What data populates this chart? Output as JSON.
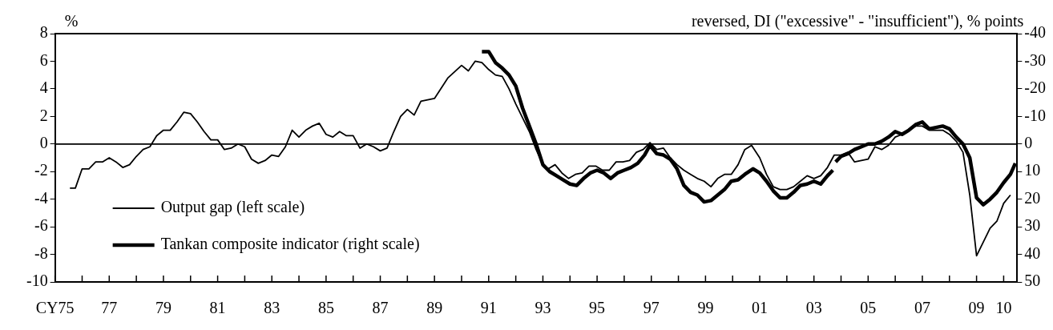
{
  "chart_data": {
    "type": "line",
    "ylabel": "%",
    "y2label": "reversed, DI (\"excessive\" - \"insufficient\"), % points",
    "xlim": [
      1975,
      2010.5
    ],
    "xticks": [
      {
        "value": 1975,
        "label": "CY75"
      },
      {
        "value": 1976,
        "label": null
      },
      {
        "value": 1977,
        "label": "77"
      },
      {
        "value": 1978,
        "label": null
      },
      {
        "value": 1979,
        "label": "79"
      },
      {
        "value": 1980,
        "label": null
      },
      {
        "value": 1981,
        "label": "81"
      },
      {
        "value": 1982,
        "label": null
      },
      {
        "value": 1983,
        "label": "83"
      },
      {
        "value": 1984,
        "label": null
      },
      {
        "value": 1985,
        "label": "85"
      },
      {
        "value": 1986,
        "label": null
      },
      {
        "value": 1987,
        "label": "87"
      },
      {
        "value": 1988,
        "label": null
      },
      {
        "value": 1989,
        "label": "89"
      },
      {
        "value": 1990,
        "label": null
      },
      {
        "value": 1991,
        "label": "91"
      },
      {
        "value": 1992,
        "label": null
      },
      {
        "value": 1993,
        "label": "93"
      },
      {
        "value": 1994,
        "label": null
      },
      {
        "value": 1995,
        "label": "95"
      },
      {
        "value": 1996,
        "label": null
      },
      {
        "value": 1997,
        "label": "97"
      },
      {
        "value": 1998,
        "label": null
      },
      {
        "value": 1999,
        "label": "99"
      },
      {
        "value": 2000,
        "label": null
      },
      {
        "value": 2001,
        "label": "01"
      },
      {
        "value": 2002,
        "label": null
      },
      {
        "value": 2003,
        "label": "03"
      },
      {
        "value": 2004,
        "label": null
      },
      {
        "value": 2005,
        "label": "05"
      },
      {
        "value": 2006,
        "label": null
      },
      {
        "value": 2007,
        "label": "07"
      },
      {
        "value": 2008,
        "label": null
      },
      {
        "value": 2009,
        "label": "09"
      },
      {
        "value": 2010,
        "label": "10"
      }
    ],
    "ylim": [
      -10,
      8
    ],
    "yticks": [
      -10,
      -8,
      -6,
      -4,
      -2,
      0,
      2,
      4,
      6,
      8
    ],
    "y2lim": [
      50,
      -40
    ],
    "y2ticks": [
      50,
      40,
      30,
      20,
      10,
      0,
      -10,
      -20,
      -30,
      -40
    ],
    "grid": false,
    "legend": "bottom left",
    "marker": "none",
    "line_style": "solid",
    "ref_lines": [
      {
        "axis": "y",
        "value": 0
      }
    ],
    "series": [
      {
        "name": "Output gap (left scale)",
        "color": "#000000",
        "axis": "y",
        "x": [
          1975.55,
          1975.75,
          1976,
          1976.25,
          1976.5,
          1976.75,
          1977,
          1977.25,
          1977.5,
          1977.75,
          1978,
          1978.25,
          1978.5,
          1978.75,
          1979,
          1979.25,
          1979.5,
          1979.75,
          1980,
          1980.25,
          1980.5,
          1980.75,
          1981,
          1981.25,
          1981.5,
          1981.75,
          1982,
          1982.25,
          1982.5,
          1982.75,
          1983,
          1983.25,
          1983.5,
          1983.75,
          1984,
          1984.25,
          1984.5,
          1984.75,
          1985,
          1985.25,
          1985.5,
          1985.75,
          1986,
          1986.25,
          1986.5,
          1986.75,
          1987,
          1987.25,
          1987.5,
          1987.75,
          1988,
          1988.25,
          1988.5,
          1989,
          1989.5,
          1990,
          1990.25,
          1990.5,
          1990.75,
          1991,
          1991.25,
          1991.5,
          1991.75,
          1992,
          1992.25,
          1992.5,
          1992.75,
          1993,
          1993.2,
          1993.45,
          1993.7,
          1993.95,
          1994.2,
          1994.45,
          1994.7,
          1994.95,
          1995.2,
          1995.45,
          1995.7,
          1995.95,
          1996.2,
          1996.45,
          1996.7,
          1996.95,
          1997.2,
          1997.45,
          1997.7,
          1997.95,
          1998.2,
          1998.45,
          1998.7,
          1998.95,
          1999.2,
          1999.45,
          1999.7,
          1999.95,
          2000.2,
          2000.45,
          2000.7,
          2001,
          2001.25,
          2001.5,
          2001.75,
          2002,
          2002.25,
          2002.5,
          2002.75,
          2003,
          2003.25,
          2003.5,
          2003.75,
          2004,
          2004.25,
          2004.5,
          2004.75,
          2005,
          2005.25,
          2005.5,
          2005.75,
          2006,
          2006.25,
          2006.5,
          2006.75,
          2007,
          2007.25,
          2007.5,
          2007.75,
          2008,
          2008.25,
          2008.5,
          2008.75,
          2009,
          2009.25,
          2009.5,
          2009.75,
          2010,
          2010.25
        ],
        "values": [
          -3.2,
          -3.2,
          -1.8,
          -1.8,
          -1.3,
          -1.3,
          -1.0,
          -1.3,
          -1.7,
          -1.5,
          -0.9,
          -0.4,
          -0.2,
          0.6,
          1.0,
          1.0,
          1.6,
          2.3,
          2.2,
          1.6,
          0.9,
          0.3,
          0.3,
          -0.4,
          -0.3,
          0.0,
          -0.2,
          -1.1,
          -1.4,
          -1.2,
          -0.8,
          -0.9,
          -0.2,
          1.0,
          0.5,
          1.0,
          1.3,
          1.5,
          0.7,
          0.5,
          0.9,
          0.6,
          0.6,
          -0.3,
          0.0,
          -0.2,
          -0.5,
          -0.3,
          0.9,
          2.0,
          2.5,
          2.1,
          3.1,
          3.3,
          4.8,
          5.7,
          5.3,
          6.0,
          5.9,
          5.4,
          5.0,
          4.9,
          4.0,
          2.9,
          1.9,
          0.9,
          -0.4,
          -1.5,
          -1.8,
          -1.5,
          -2.1,
          -2.5,
          -2.2,
          -2.1,
          -1.6,
          -1.6,
          -1.9,
          -1.9,
          -1.3,
          -1.3,
          -1.2,
          -0.6,
          -0.4,
          0.1,
          -0.4,
          -0.3,
          -1.0,
          -1.5,
          -1.9,
          -2.2,
          -2.5,
          -2.7,
          -3.1,
          -2.5,
          -2.2,
          -2.2,
          -1.5,
          -0.4,
          -0.1,
          -1.0,
          -2.2,
          -3.1,
          -3.3,
          -3.3,
          -3.1,
          -2.7,
          -2.3,
          -2.5,
          -2.3,
          -1.7,
          -0.8,
          -0.8,
          -0.6,
          -1.3,
          -1.2,
          -1.1,
          -0.2,
          -0.4,
          -0.1,
          0.5,
          0.7,
          1.0,
          1.3,
          1.3,
          1.0,
          1.0,
          1.0,
          0.7,
          0.2,
          -0.6,
          -3.7,
          -8.1,
          -7.1,
          -6.1,
          -5.6,
          -4.3,
          -3.7
        ]
      },
      {
        "name": "Tankan composite indicator (right scale)",
        "color": "#000000",
        "axis": "y2",
        "x": [
          1990.75,
          1991,
          1991.25,
          1991.5,
          1991.75,
          1992,
          1992.25,
          1992.5,
          1992.75,
          1993,
          1993.25,
          1993.5,
          1993.75,
          1994,
          1994.25,
          1994.5,
          1994.75,
          1995,
          1995.25,
          1995.5,
          1995.75,
          1996,
          1996.25,
          1996.5,
          1996.75,
          1996.95,
          1997.2,
          1997.45,
          1997.7,
          1997.95,
          1998.2,
          1998.45,
          1998.7,
          1998.95,
          1999.2,
          1999.45,
          1999.7,
          1999.95,
          2000.2,
          2000.45,
          2000.75,
          2001,
          2001.25,
          2001.5,
          2001.75,
          2002,
          2002.25,
          2002.5,
          2002.75,
          2003,
          2003.25,
          2003.5,
          2003.7,
          2003.75,
          2003.8,
          2004,
          2004.25,
          2004.5,
          2004.75,
          2005,
          2005.25,
          2005.5,
          2005.75,
          2006,
          2006.25,
          2006.5,
          2006.75,
          2007,
          2007.25,
          2007.5,
          2007.75,
          2008,
          2008.25,
          2008.5,
          2008.75,
          2009,
          2009.25,
          2009.5,
          2009.75,
          2010,
          2010.25,
          2010.43
        ],
        "values": [
          -33.5,
          -33.5,
          -29.5,
          -27.5,
          -25,
          -21,
          -13,
          -6.5,
          0,
          7.5,
          10,
          11.5,
          13,
          14.5,
          15,
          12.5,
          10.5,
          9.5,
          10.5,
          12.5,
          10.5,
          9.5,
          8.5,
          7,
          4,
          0.5,
          3.5,
          4,
          5.5,
          9,
          15,
          17.5,
          18.5,
          21,
          20.5,
          18.5,
          16.5,
          13.5,
          13,
          11,
          9,
          10.5,
          13.5,
          17,
          19.5,
          19.5,
          17.5,
          15,
          14.5,
          13.5,
          14.5,
          11.5,
          9.5,
          null,
          6.5,
          4.5,
          3.5,
          2,
          1,
          0,
          0,
          -1,
          -2.5,
          -4.5,
          -3.5,
          -5,
          -7,
          -8,
          -5.5,
          -6,
          -6.5,
          -5.5,
          -2.5,
          0,
          5,
          19.5,
          22,
          20,
          17.5,
          14,
          11,
          7
        ]
      }
    ]
  }
}
